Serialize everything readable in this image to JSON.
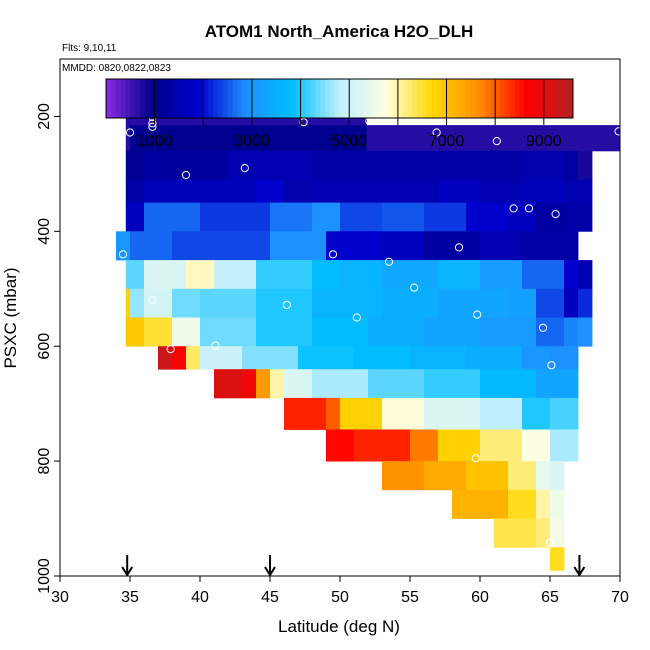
{
  "title": "ATOM1 North_America H2O_DLH",
  "flights_note": "Flts: 9,10,11",
  "dates_note": "MMDD: 0820,0822,0823",
  "chart_data": {
    "type": "heatmap",
    "title": "ATOM1 North_America H2O_DLH",
    "xlabel": "Latitude (deg N)",
    "ylabel": "PSXC (mbar)",
    "xlim": [
      30,
      70
    ],
    "ylim": [
      1000,
      100
    ],
    "x_ticks": [
      "30",
      "35",
      "40",
      "45",
      "50",
      "55",
      "60",
      "65",
      "70"
    ],
    "y_ticks": [
      "200",
      "400",
      "600",
      "800",
      "1000"
    ],
    "colorbar": {
      "range": [
        0,
        9600
      ],
      "tick_labels": [
        "1000",
        "3000",
        "5000",
        "7000",
        "9000"
      ],
      "colors": [
        "#8a2be2",
        "#00008b",
        "#0000cd",
        "#1e90ff",
        "#00bfff",
        "#bfefff",
        "#ffffe0",
        "#ffd700",
        "#ff8c00",
        "#ff0000",
        "#b22222"
      ]
    },
    "bins": {
      "lat_width": 1,
      "pressure_levels": [
        180,
        230,
        275,
        325,
        375,
        425,
        475,
        525,
        575,
        625,
        675,
        725,
        775,
        825,
        875,
        925,
        975
      ]
    },
    "rows": [
      {
        "p": [
          170,
          215
        ],
        "cells": [
          [
            34.7,
            51.9,
            700
          ]
        ]
      },
      {
        "p": [
          215,
          260
        ],
        "cells": [
          [
            34.7,
            35,
            700
          ],
          [
            35,
            40,
            1000
          ],
          [
            40,
            51.9,
            1000
          ],
          [
            51.9,
            70,
            700
          ]
        ]
      },
      {
        "p": [
          260,
          310
        ],
        "cells": [
          [
            34.7,
            36,
            1100
          ],
          [
            36,
            38,
            1300
          ],
          [
            38,
            42,
            1200
          ],
          [
            42,
            48,
            1500
          ],
          [
            48,
            63,
            1400
          ],
          [
            63,
            66,
            1450
          ],
          [
            66,
            67,
            1300
          ],
          [
            67,
            68,
            800
          ]
        ]
      },
      {
        "p": [
          310,
          350
        ],
        "cells": [
          [
            34.7,
            36,
            1400
          ],
          [
            36,
            44,
            1650
          ],
          [
            44,
            46,
            1900
          ],
          [
            46,
            48,
            1450
          ],
          [
            48,
            57,
            1500
          ],
          [
            57,
            60,
            1700
          ],
          [
            60,
            63,
            1500
          ],
          [
            63,
            66,
            1650
          ],
          [
            66,
            68,
            1500
          ]
        ]
      },
      {
        "p": [
          350,
          400
        ],
        "cells": [
          [
            34.7,
            36,
            1700
          ],
          [
            36,
            40,
            2600
          ],
          [
            40,
            45,
            2300
          ],
          [
            45,
            48,
            2700
          ],
          [
            48,
            50,
            2900
          ],
          [
            50,
            53,
            2400
          ],
          [
            53,
            56,
            2500
          ],
          [
            56,
            59,
            2300
          ],
          [
            59,
            62,
            1900
          ],
          [
            62,
            64,
            1700
          ],
          [
            64,
            66,
            1300
          ],
          [
            66,
            68,
            1400
          ]
        ]
      },
      {
        "p": [
          400,
          450
        ],
        "cells": [
          [
            34,
            35,
            3000
          ],
          [
            35,
            38,
            2600
          ],
          [
            38,
            45,
            2400
          ],
          [
            45,
            49,
            2900
          ],
          [
            49,
            53,
            1900
          ],
          [
            53,
            56,
            1700
          ],
          [
            56,
            60,
            1300
          ],
          [
            60,
            63,
            1500
          ],
          [
            63,
            67,
            1350
          ]
        ]
      },
      {
        "p": [
          450,
          500
        ],
        "cells": [
          [
            34.7,
            36,
            4300
          ],
          [
            36,
            39,
            5200
          ],
          [
            39,
            41,
            5900
          ],
          [
            41,
            44,
            4900
          ],
          [
            44,
            48,
            4100
          ],
          [
            48,
            50,
            3800
          ],
          [
            50,
            53,
            3600
          ],
          [
            53,
            57,
            3400
          ],
          [
            57,
            60,
            3600
          ],
          [
            60,
            63,
            3100
          ],
          [
            63,
            66,
            2600
          ],
          [
            66,
            67,
            1900
          ],
          [
            67,
            68,
            1500
          ]
        ]
      },
      {
        "p": [
          500,
          550
        ],
        "cells": [
          [
            34.7,
            35,
            6800
          ],
          [
            35,
            36,
            4600
          ],
          [
            36,
            38,
            5100
          ],
          [
            38,
            40,
            4400
          ],
          [
            40,
            44,
            4300
          ],
          [
            44,
            48,
            4000
          ],
          [
            48,
            53,
            3600
          ],
          [
            53,
            57,
            3500
          ],
          [
            57,
            62,
            3300
          ],
          [
            62,
            64,
            3200
          ],
          [
            64,
            66,
            2400
          ],
          [
            66,
            67,
            1700
          ],
          [
            67,
            68,
            2200
          ]
        ]
      },
      {
        "p": [
          550,
          600
        ],
        "cells": [
          [
            34.7,
            36,
            6900
          ],
          [
            36,
            38,
            6500
          ],
          [
            38,
            40,
            5500
          ],
          [
            40,
            44,
            4400
          ],
          [
            44,
            48,
            4000
          ],
          [
            48,
            52,
            3800
          ],
          [
            52,
            56,
            3500
          ],
          [
            56,
            60,
            3300
          ],
          [
            60,
            64,
            3100
          ],
          [
            64,
            66,
            2600
          ],
          [
            66,
            67,
            2800
          ],
          [
            67,
            68,
            2900
          ]
        ]
      },
      {
        "p": [
          600,
          640
        ],
        "cells": [
          [
            37,
            38,
            9300
          ],
          [
            38,
            39,
            8700
          ],
          [
            39,
            40,
            6300
          ],
          [
            40,
            43,
            5000
          ],
          [
            43,
            47,
            4500
          ],
          [
            47,
            51,
            3900
          ],
          [
            51,
            55,
            3800
          ],
          [
            55,
            59,
            3600
          ],
          [
            59,
            63,
            3500
          ],
          [
            63,
            65,
            3000
          ],
          [
            65,
            67,
            2900
          ]
        ]
      },
      {
        "p": [
          640,
          690
        ],
        "cells": [
          [
            41,
            43,
            9100
          ],
          [
            43,
            44,
            8800
          ],
          [
            44,
            45,
            7500
          ],
          [
            45,
            46,
            6000
          ],
          [
            46,
            48,
            5200
          ],
          [
            48,
            52,
            4700
          ],
          [
            52,
            56,
            4300
          ],
          [
            56,
            60,
            4100
          ],
          [
            60,
            64,
            3700
          ],
          [
            64,
            66,
            3300
          ],
          [
            66,
            67,
            3300
          ]
        ]
      },
      {
        "p": [
          690,
          745
        ],
        "cells": [
          [
            46,
            49,
            8400
          ],
          [
            49,
            50,
            8000
          ],
          [
            50,
            53,
            6800
          ],
          [
            53,
            56,
            5800
          ],
          [
            56,
            60,
            5200
          ],
          [
            60,
            63,
            4800
          ],
          [
            63,
            65,
            4000
          ],
          [
            65,
            67,
            4200
          ]
        ]
      },
      {
        "p": [
          745,
          800
        ],
        "cells": [
          [
            49,
            51,
            8600
          ],
          [
            51,
            55,
            8400
          ],
          [
            55,
            57,
            7800
          ],
          [
            57,
            60,
            6800
          ],
          [
            60,
            63,
            6200
          ],
          [
            63,
            65,
            5700
          ],
          [
            65,
            67,
            4700
          ]
        ]
      },
      {
        "p": [
          800,
          850
        ],
        "cells": [
          [
            53,
            56,
            7600
          ],
          [
            56,
            59,
            7300
          ],
          [
            59,
            62,
            7000
          ],
          [
            62,
            64,
            6200
          ],
          [
            64,
            65,
            5400
          ],
          [
            65,
            66,
            5200
          ]
        ]
      },
      {
        "p": [
          850,
          900
        ],
        "cells": [
          [
            58,
            62,
            7200
          ],
          [
            62,
            64,
            6600
          ],
          [
            64,
            65,
            6000
          ],
          [
            65,
            66,
            5500
          ]
        ]
      },
      {
        "p": [
          900,
          950
        ],
        "cells": [
          [
            61,
            64,
            6400
          ],
          [
            64,
            65,
            6200
          ],
          [
            65,
            66,
            5600
          ]
        ]
      },
      {
        "p": [
          950,
          990
        ],
        "cells": [
          [
            65,
            66,
            6600
          ]
        ]
      }
    ],
    "points": [
      [
        35.0,
        228
      ],
      [
        35.6,
        189
      ],
      [
        36.2,
        189
      ],
      [
        36.6,
        201
      ],
      [
        36.6,
        212
      ],
      [
        36.6,
        218
      ],
      [
        47.4,
        210
      ],
      [
        52.1,
        208
      ],
      [
        56.9,
        228
      ],
      [
        61.2,
        243
      ],
      [
        69.9,
        226
      ],
      [
        39.0,
        302
      ],
      [
        43.2,
        290
      ],
      [
        34.5,
        440
      ],
      [
        49.5,
        440
      ],
      [
        53.5,
        453
      ],
      [
        58.5,
        428
      ],
      [
        62.4,
        360
      ],
      [
        63.5,
        360
      ],
      [
        65.4,
        370
      ],
      [
        36.6,
        520
      ],
      [
        46.2,
        528
      ],
      [
        51.2,
        550
      ],
      [
        55.3,
        498
      ],
      [
        59.8,
        545
      ],
      [
        64.5,
        568
      ],
      [
        65.1,
        633
      ],
      [
        37.9,
        605
      ],
      [
        41.1,
        599
      ],
      [
        59.7,
        795
      ],
      [
        65.0,
        942
      ]
    ],
    "markers": {
      "latitudes": [
        34.8,
        45.0,
        67.1
      ],
      "pressure": 1000
    }
  }
}
